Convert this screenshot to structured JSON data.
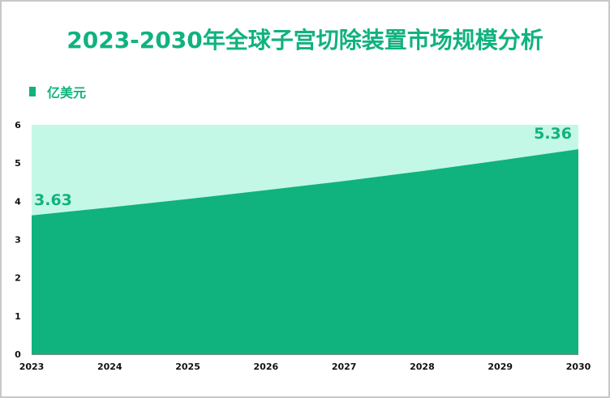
{
  "title": "2023-2030年全球子宫切除装置市场规模分析",
  "legend": {
    "label": "亿美元",
    "color": "#10b27e"
  },
  "colors": {
    "area": "#10b27e",
    "background_band": "#c3f7e6",
    "title": "#10b27e"
  },
  "chart_data": {
    "type": "area",
    "title": "2023-2030年全球子宫切除装置市场规模分析",
    "categories": [
      "2023",
      "2024",
      "2025",
      "2026",
      "2027",
      "2028",
      "2029",
      "2030"
    ],
    "series": [
      {
        "name": "亿美元",
        "values": [
          3.63,
          3.84,
          4.06,
          4.29,
          4.53,
          4.79,
          5.07,
          5.36
        ]
      }
    ],
    "data_labels": [
      {
        "category": "2023",
        "text": "3.63"
      },
      {
        "category": "2030",
        "text": "5.36"
      }
    ],
    "yticks": [
      "0",
      "1",
      "2",
      "3",
      "4",
      "5",
      "6"
    ],
    "ylim": [
      0,
      6
    ],
    "xlabel": "",
    "ylabel": "",
    "grid": false,
    "legend_position": "top-left"
  }
}
